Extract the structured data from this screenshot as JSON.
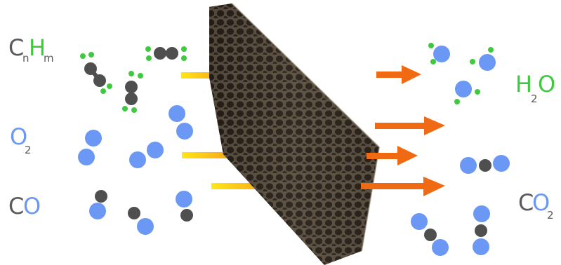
{
  "labels": {
    "hydrocarbon": {
      "main_c": "C",
      "sub_n": "n",
      "main_h": "H",
      "sub_m": "m"
    },
    "oxygen": {
      "main": "O",
      "sub": "2"
    },
    "carbon_monoxide": {
      "main_c": "C",
      "main_o": "O"
    },
    "water": {
      "main_h": "H",
      "sub": "2",
      "main_o": "O"
    },
    "carbon_dioxide": {
      "main_c": "C",
      "main_o": "O",
      "sub": "2"
    }
  },
  "colors": {
    "carbon": "#4f4f4f",
    "hydrogen": "#3fc93f",
    "oxygen": "#6a98f4",
    "label_grey": "#5a5a5a",
    "arrow_yellow": "#ffe617",
    "arrow_orange": "#f06a14",
    "foam": "#4e4438"
  },
  "image": {
    "subject": "ceramic-foam-filter"
  }
}
